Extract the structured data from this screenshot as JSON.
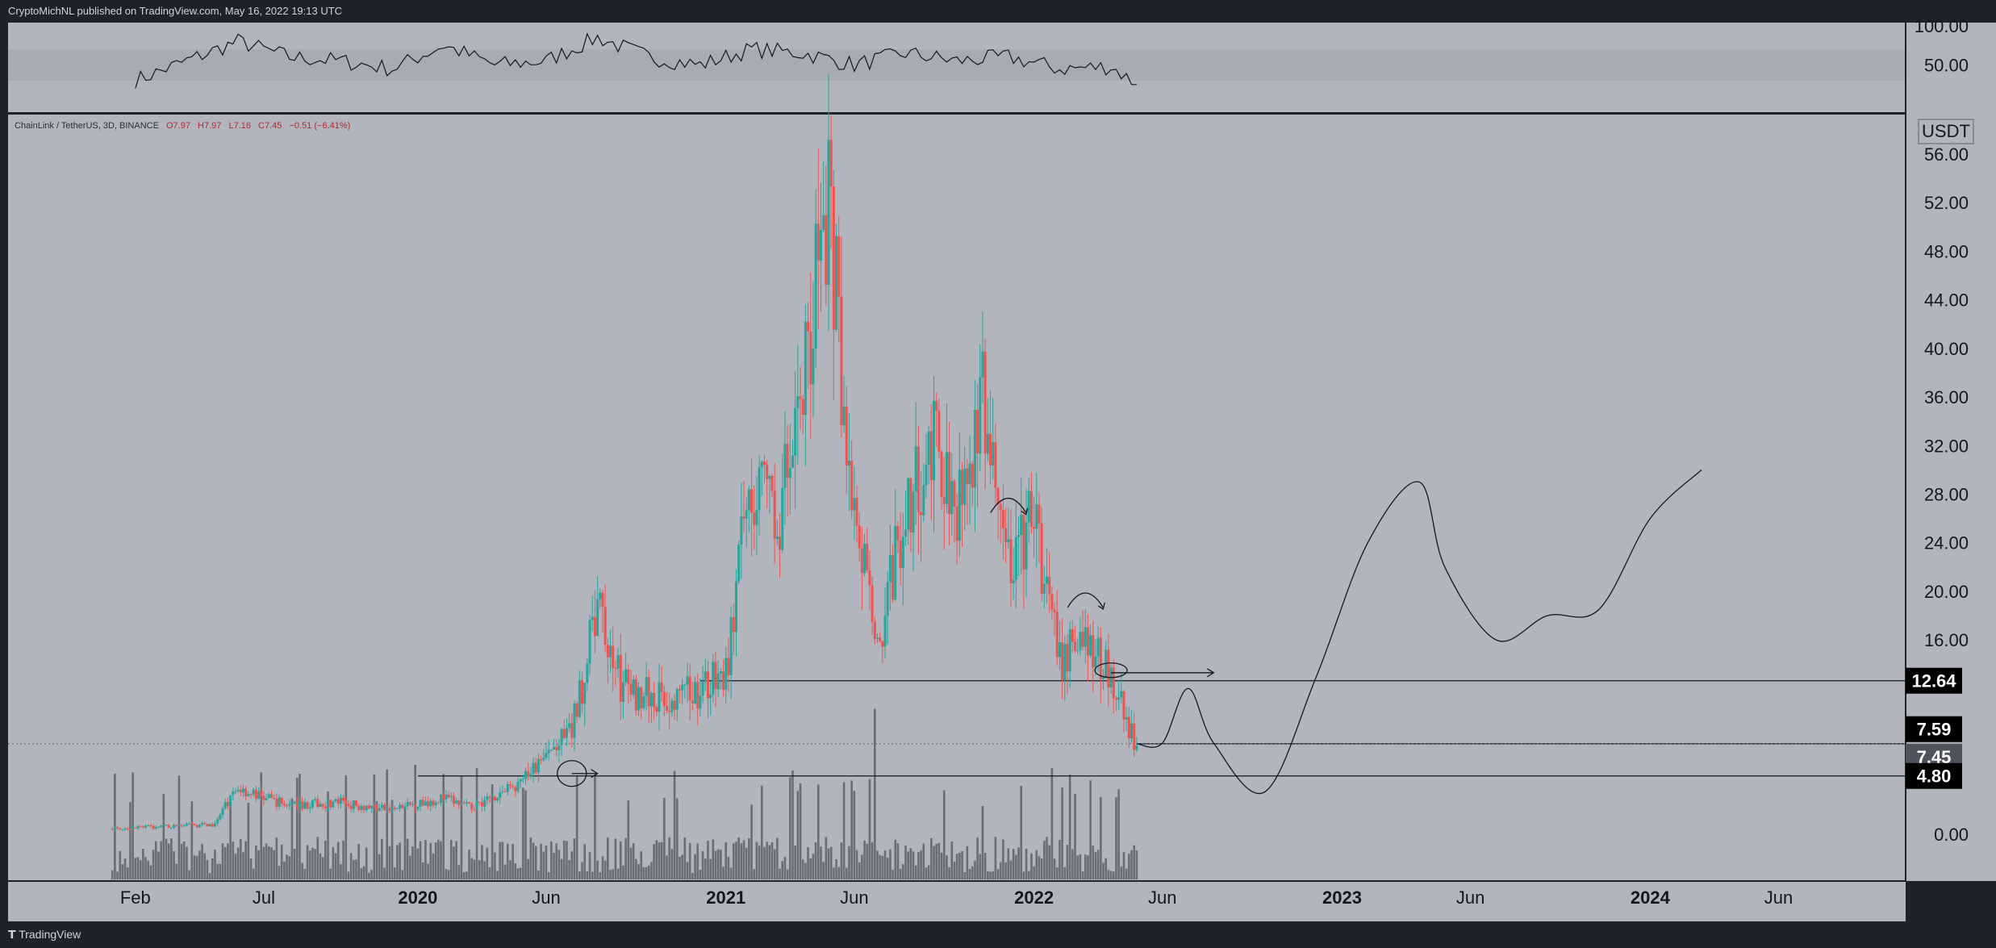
{
  "header": {
    "publisher": "CryptoMichNL published on TradingView.com, May 16, 2022 19:13 UTC"
  },
  "footer": {
    "brand": "TradingView"
  },
  "legend": {
    "symbol": "ChainLink / TetherUS, 3D, BINANCE",
    "open": "O7.97",
    "high": "H7.97",
    "low": "L7.16",
    "close": "C7.45",
    "change": "−0.51 (−6.41%)"
  },
  "colors": {
    "up": "#26a69a",
    "down": "#ef5350",
    "pane": "#b2b5be",
    "frame": "#1e222d",
    "dark": "#131722"
  },
  "chart_data": [
    {
      "type": "line",
      "name": "RSI pane",
      "y_ticks": [
        "100.00",
        "50.00"
      ],
      "ylim": [
        0,
        100
      ],
      "band": [
        30,
        70
      ],
      "x": [
        "2019-02",
        "2019-04",
        "2019-06",
        "2019-08",
        "2019-10",
        "2019-12",
        "2020-02",
        "2020-04",
        "2020-06",
        "2020-08",
        "2020-10",
        "2020-12",
        "2021-02",
        "2021-04",
        "2021-06",
        "2021-08",
        "2021-10",
        "2021-12",
        "2022-02",
        "2022-04",
        "2022-05"
      ],
      "values": [
        30,
        55,
        80,
        60,
        55,
        45,
        75,
        50,
        55,
        85,
        60,
        50,
        70,
        65,
        50,
        65,
        55,
        60,
        45,
        48,
        25
      ]
    },
    {
      "type": "candlestick",
      "name": "LINK/USDT 3D",
      "currency_label": "USDT",
      "y_ticks": [
        "56.00",
        "52.00",
        "48.00",
        "44.00",
        "40.00",
        "36.00",
        "32.00",
        "28.00",
        "24.00",
        "20.00",
        "16.00",
        "0.00"
      ],
      "ylim": [
        -3,
        58
      ],
      "x_ticks": [
        "Feb",
        "Jul",
        "2020",
        "Jun",
        "2021",
        "Jun",
        "2022",
        "Jun",
        "2023",
        "Jun",
        "2024",
        "Jun"
      ],
      "price_labels": [
        {
          "text": "12.64",
          "value": 12.64,
          "style": "black"
        },
        {
          "text": "7.59",
          "value": 7.59,
          "style": "black"
        },
        {
          "text": "7.45",
          "value": 7.45,
          "style": "grey"
        },
        {
          "text": "4.80",
          "value": 4.8,
          "style": "black"
        }
      ],
      "horizontal_lines": [
        {
          "value": 12.64,
          "from": "2020-12",
          "to": "2024-12"
        },
        {
          "value": 7.45,
          "from": "2022-05",
          "to": "2024-12"
        },
        {
          "value": 4.8,
          "from": "2020-01",
          "to": "2024-12"
        }
      ],
      "ohlc_path": [
        [
          "2019-01",
          0.45
        ],
        [
          "2019-05",
          0.8
        ],
        [
          "2019-06",
          3.8
        ],
        [
          "2019-07",
          3.0
        ],
        [
          "2019-08",
          2.4
        ],
        [
          "2019-10",
          2.6
        ],
        [
          "2019-12",
          2.0
        ],
        [
          "2020-02",
          3.0
        ],
        [
          "2020-03",
          2.2
        ],
        [
          "2020-05",
          4.2
        ],
        [
          "2020-07",
          8.5
        ],
        [
          "2020-08",
          18.5
        ],
        [
          "2020-09",
          12.0
        ],
        [
          "2020-11",
          11.0
        ],
        [
          "2021-01",
          13.0
        ],
        [
          "2021-02",
          30.0
        ],
        [
          "2021-03",
          25.0
        ],
        [
          "2021-04",
          38.0
        ],
        [
          "2021-05",
          52.5
        ],
        [
          "2021-06",
          25.0
        ],
        [
          "2021-07",
          16.0
        ],
        [
          "2021-08",
          27.0
        ],
        [
          "2021-09",
          32.0
        ],
        [
          "2021-10",
          28.0
        ],
        [
          "2021-11",
          35.0
        ],
        [
          "2021-12",
          22.0
        ],
        [
          "2022-01",
          26.0
        ],
        [
          "2022-02",
          14.0
        ],
        [
          "2022-03",
          17.0
        ],
        [
          "2022-04",
          12.5
        ],
        [
          "2022-05",
          7.45
        ]
      ],
      "projection": [
        [
          "2022-06",
          7.5
        ],
        [
          "2022-07",
          12.0
        ],
        [
          "2022-08",
          7.5
        ],
        [
          "2022-10",
          3.5
        ],
        [
          "2022-12",
          13.0
        ],
        [
          "2023-02",
          24.0
        ],
        [
          "2023-04",
          29.0
        ],
        [
          "2023-05",
          22.0
        ],
        [
          "2023-07",
          16.0
        ],
        [
          "2023-09",
          18.0
        ],
        [
          "2023-11",
          18.5
        ],
        [
          "2024-01",
          26.0
        ],
        [
          "2024-03",
          30.0
        ]
      ]
    }
  ]
}
